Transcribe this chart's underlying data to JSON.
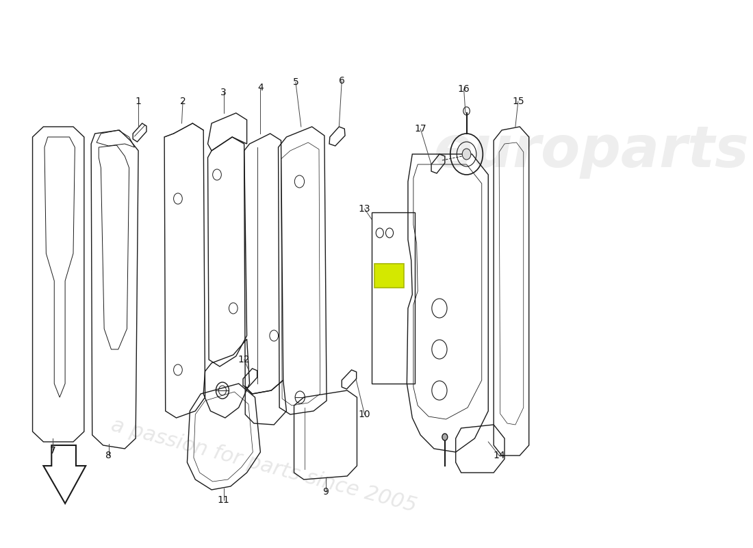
{
  "background_color": "#ffffff",
  "line_color": "#1a1a1a",
  "label_color": "#111111",
  "highlight_color": "#d4e800",
  "lw": 1.0,
  "watermark1": "europarts",
  "watermark2": "a passion for parts since 2005",
  "wm_color1": "#d8d8d8",
  "wm_color2": "#cccccc"
}
